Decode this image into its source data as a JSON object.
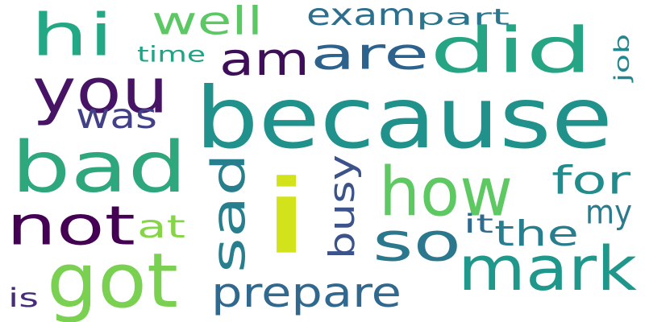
{
  "word_cloud": {
    "words": [
      {
        "text": "because",
        "color": "#21918c",
        "vertical": false
      },
      {
        "text": "bad",
        "color": "#2fa77d",
        "vertical": false
      },
      {
        "text": "you",
        "color": "#471365",
        "vertical": false
      },
      {
        "text": "i",
        "color": "#d2e21b",
        "vertical": false
      },
      {
        "text": "not",
        "color": "#440154",
        "vertical": false
      },
      {
        "text": "hi",
        "color": "#22a884",
        "vertical": false
      },
      {
        "text": "got",
        "color": "#7ad151",
        "vertical": false
      },
      {
        "text": "how",
        "color": "#5ec962",
        "vertical": false
      },
      {
        "text": "am",
        "color": "#3e0f58",
        "vertical": false
      },
      {
        "text": "are",
        "color": "#2c628b",
        "vertical": false
      },
      {
        "text": "did",
        "color": "#25a584",
        "vertical": false
      },
      {
        "text": "so",
        "color": "#2a778e",
        "vertical": false
      },
      {
        "text": "mark",
        "color": "#1f978b",
        "vertical": false
      },
      {
        "text": "sad",
        "color": "#277f8e",
        "vertical": true
      },
      {
        "text": "prepare",
        "color": "#31688e",
        "vertical": false
      },
      {
        "text": "was",
        "color": "#424086",
        "vertical": false
      },
      {
        "text": "busy",
        "color": "#3b528b",
        "vertical": true
      },
      {
        "text": "well",
        "color": "#5cc863",
        "vertical": false
      },
      {
        "text": "exam",
        "color": "#2d708e",
        "vertical": false
      },
      {
        "text": "for",
        "color": "#228c8d",
        "vertical": false
      },
      {
        "text": "the",
        "color": "#277e8e",
        "vertical": false
      },
      {
        "text": "my",
        "color": "#2a7b8e",
        "vertical": false
      },
      {
        "text": "at",
        "color": "#86d549",
        "vertical": false
      },
      {
        "text": "time",
        "color": "#20a486",
        "vertical": false
      },
      {
        "text": "part",
        "color": "#2a768e",
        "vertical": false
      },
      {
        "text": "job",
        "color": "#23888e",
        "vertical": true
      },
      {
        "text": "it",
        "color": "#306a8e",
        "vertical": false
      },
      {
        "text": "is",
        "color": "#472c7a",
        "vertical": false
      }
    ]
  }
}
